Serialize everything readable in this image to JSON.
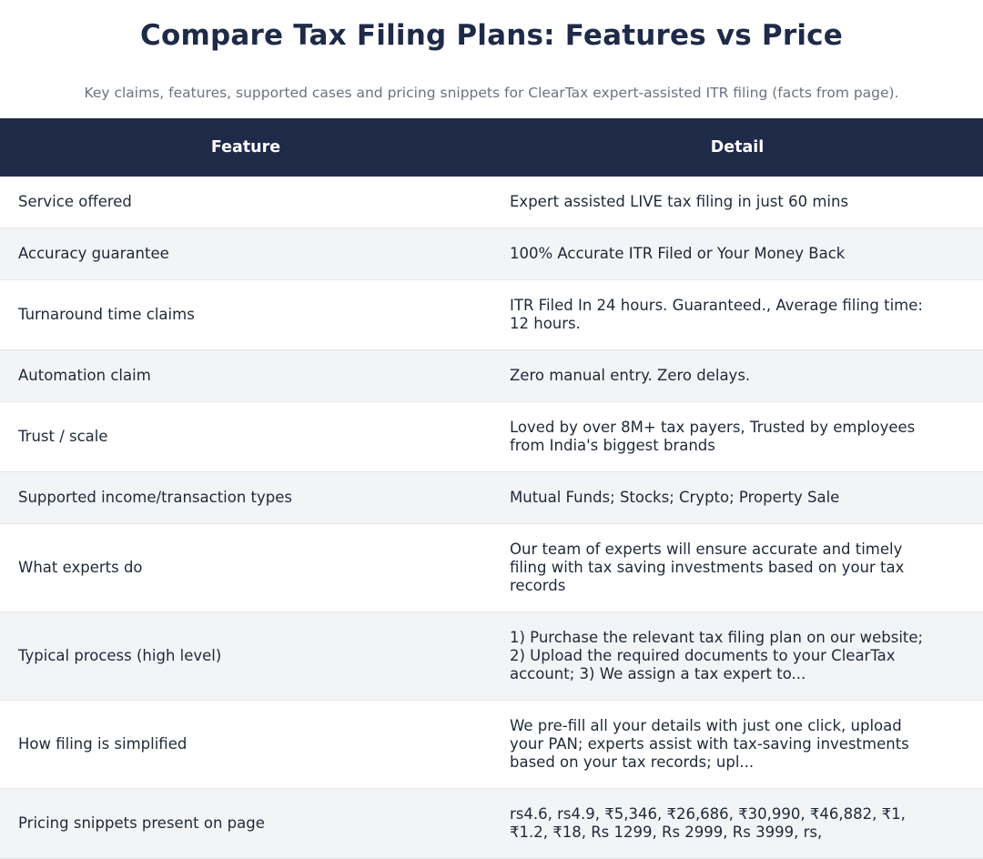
{
  "title": "Compare Tax Filing Plans: Features vs Price",
  "subtitle": "Key claims, features, supported cases and pricing snippets for ClearTax expert-assisted ITR filing (facts from page).",
  "table": {
    "headers": [
      "Feature",
      "Detail"
    ],
    "rows": [
      {
        "feature": "Service offered",
        "detail": "Expert assisted LIVE tax filing in just 60 mins"
      },
      {
        "feature": "Accuracy guarantee",
        "detail": "100% Accurate ITR Filed or Your Money Back"
      },
      {
        "feature": "Turnaround time claims",
        "detail": "ITR Filed In 24 hours. Guaranteed., Average filing time: 12 hours."
      },
      {
        "feature": "Automation claim",
        "detail": "Zero manual entry. Zero delays."
      },
      {
        "feature": "Trust / scale",
        "detail": "Loved by over 8M+ tax payers, Trusted by employees from India's biggest brands"
      },
      {
        "feature": "Supported income/transaction types",
        "detail": "Mutual Funds; Stocks; Crypto; Property Sale"
      },
      {
        "feature": "What experts do",
        "detail": "Our team of experts will ensure accurate and timely filing with tax saving investments based on your tax records"
      },
      {
        "feature": "Typical process (high level)",
        "detail": "1) Purchase the relevant tax filing plan on our website; 2) Upload the required documents to your ClearTax account; 3) We assign a tax expert to..."
      },
      {
        "feature": "How filing is simplified",
        "detail": "We pre-fill all your details with just one click, upload your PAN; experts assist with tax-saving investments based on your tax records; upl..."
      },
      {
        "feature": "Pricing snippets present on page",
        "detail": "rs4.6, rs4.9, ₹5,346, ₹26,686, ₹30,990, ₹46,882, ₹1, ₹1.2, ₹18, Rs 1299, Rs 2999, Rs 3999, rs,"
      }
    ]
  }
}
